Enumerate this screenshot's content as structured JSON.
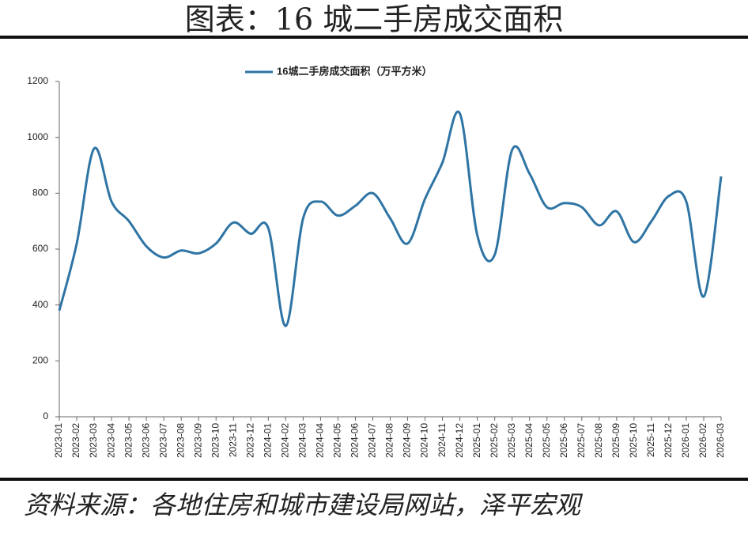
{
  "chart_data": {
    "type": "line",
    "title": "图表：16 城二手房成交面积",
    "source": "资料来源：各地住房和城市建设局网站，泽平宏观",
    "categories": [
      "2023-01",
      "2023-02",
      "2023-03",
      "2023-04",
      "2023-05",
      "2023-06",
      "2023-07",
      "2023-08",
      "2023-09",
      "2023-10",
      "2023-11",
      "2023-12",
      "2024-01",
      "2024-02",
      "2024-03",
      "2024-04",
      "2024-05",
      "2024-06",
      "2024-07",
      "2024-08",
      "2024-09",
      "2024-10",
      "2024-11",
      "2024-12",
      "2025-01",
      "2025-02",
      "2025-03",
      "2025-04",
      "2025-05",
      "2025-06",
      "2025-07",
      "2025-08",
      "2025-09",
      "2025-10",
      "2025-11",
      "2025-12",
      "2026-01",
      "2026-02",
      "2026-03"
    ],
    "series": [
      {
        "name": "16城二手房成交面积（万平方米）",
        "color": "#2e74a4",
        "values": [
          380,
          620,
          960,
          770,
          700,
          610,
          570,
          595,
          585,
          620,
          695,
          655,
          675,
          325,
          710,
          770,
          720,
          755,
          800,
          710,
          620,
          780,
          910,
          1085,
          650,
          580,
          955,
          870,
          750,
          765,
          750,
          685,
          735,
          625,
          700,
          790,
          770,
          430,
          860
        ]
      }
    ],
    "ylim": [
      0,
      1200
    ],
    "yticks": [
      0,
      200,
      400,
      600,
      800,
      1000,
      1200
    ]
  }
}
